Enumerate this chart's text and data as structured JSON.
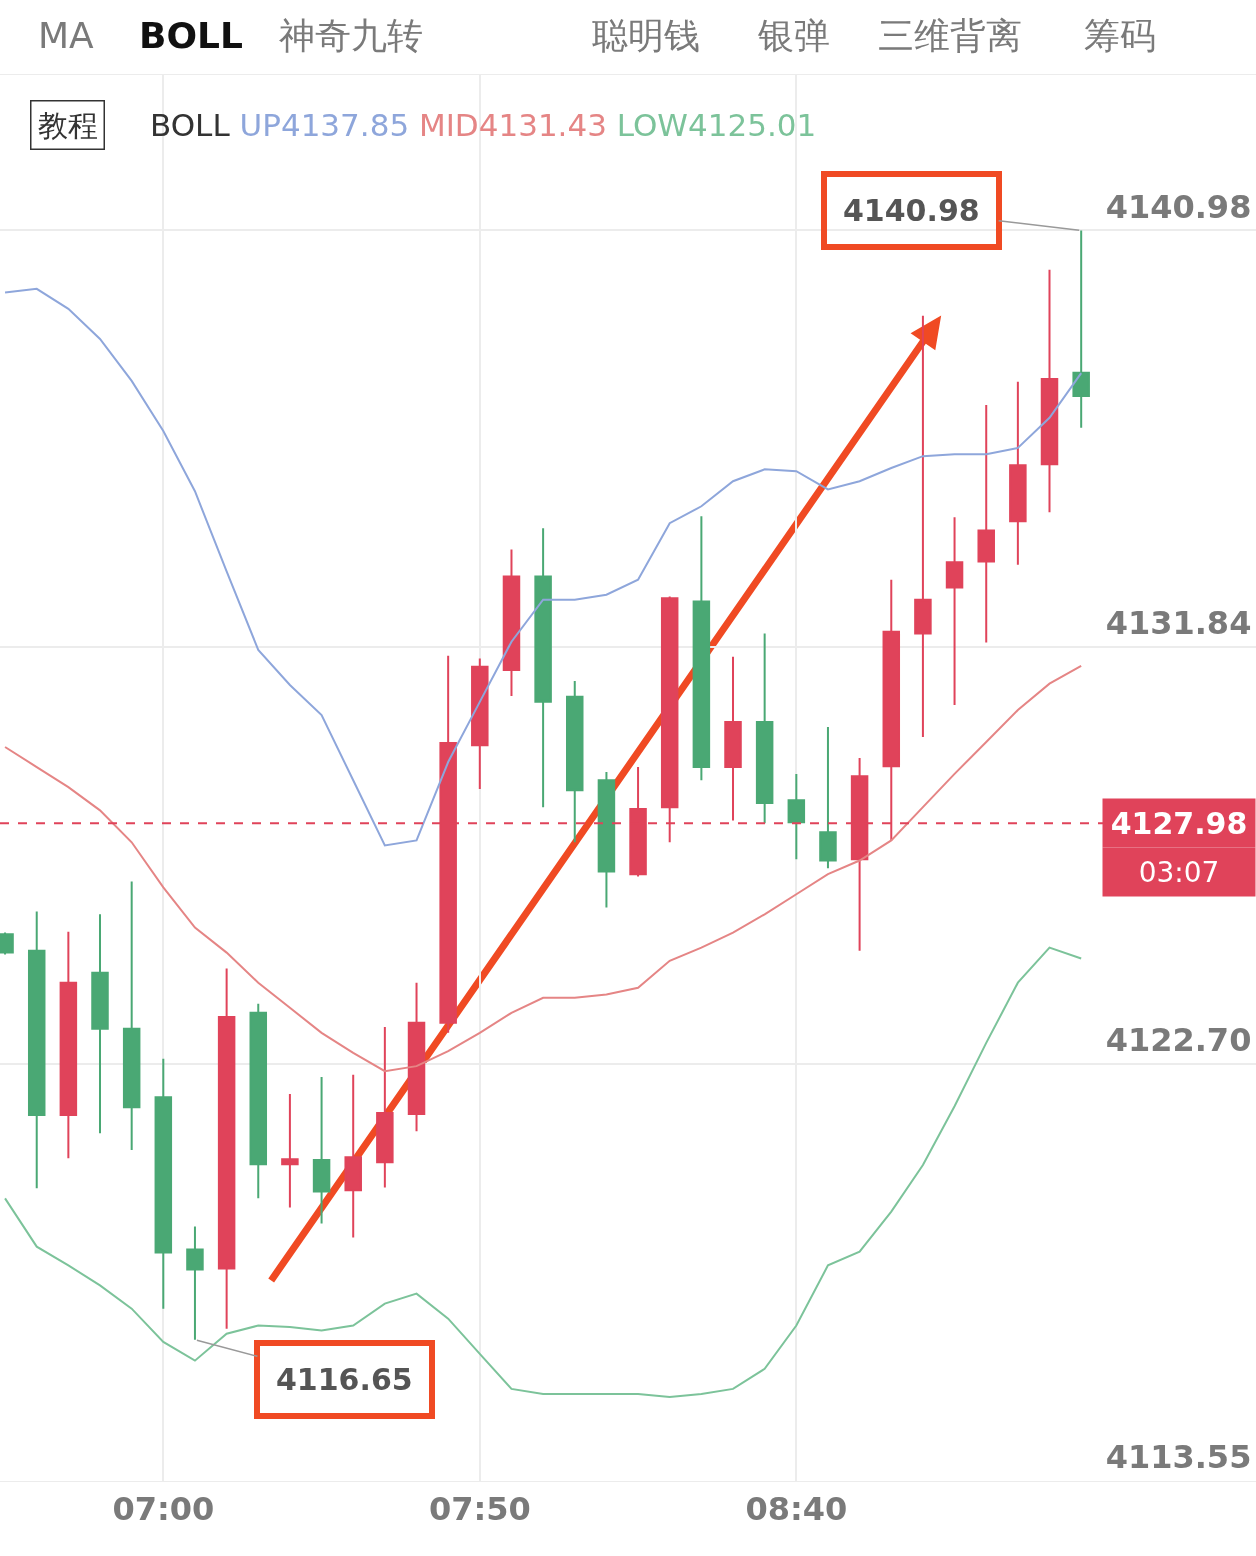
{
  "chart_data": {
    "type": "candlestick",
    "x": [
      6.5833,
      6.6667,
      6.75,
      6.8333,
      6.9167,
      7.0,
      7.0833,
      7.1667,
      7.25,
      7.3333,
      7.4167,
      7.5,
      7.5833,
      7.6667,
      7.75,
      7.8333,
      7.9167,
      8.0,
      8.0833,
      8.1667,
      8.25,
      8.3333,
      8.4167,
      8.5,
      8.5833,
      8.6667,
      8.75,
      8.8333,
      8.9167,
      9.0,
      9.0833,
      9.1667,
      9.25,
      9.3333,
      9.4167
    ],
    "ohlc": [
      [
        4125.54,
        4125.58,
        4125.1,
        4125.14
      ],
      [
        4125.18,
        4126.04,
        4119.97,
        4121.58
      ],
      [
        4121.58,
        4125.6,
        4120.63,
        4124.48
      ],
      [
        4124.7,
        4125.98,
        4121.18,
        4123.47
      ],
      [
        4123.47,
        4126.7,
        4120.81,
        4121.75
      ],
      [
        4121.97,
        4122.81,
        4117.33,
        4118.56
      ],
      [
        4118.63,
        4119.13,
        4116.65,
        4118.19
      ],
      [
        4118.21,
        4124.79,
        4116.89,
        4123.73
      ],
      [
        4123.82,
        4124.02,
        4119.75,
        4120.5
      ],
      [
        4120.5,
        4122.04,
        4119.55,
        4120.61
      ],
      [
        4120.59,
        4122.41,
        4119.2,
        4119.9
      ],
      [
        4119.93,
        4122.46,
        4118.89,
        4120.65
      ],
      [
        4120.54,
        4123.51,
        4119.99,
        4121.62
      ],
      [
        4121.6,
        4124.48,
        4121.22,
        4123.6
      ],
      [
        4123.6,
        4131.65,
        4123.38,
        4129.74
      ],
      [
        4129.69,
        4131.59,
        4128.73,
        4131.41
      ],
      [
        4131.34,
        4133.98,
        4130.77,
        4133.39
      ],
      [
        4133.39,
        4134.45,
        4128.33,
        4130.64
      ],
      [
        4130.75,
        4131.1,
        4127.56,
        4128.7
      ],
      [
        4128.92,
        4129.1,
        4126.13,
        4126.92
      ],
      [
        4126.86,
        4129.21,
        4126.81,
        4128.29
      ],
      [
        4128.33,
        4132.95,
        4127.56,
        4132.91
      ],
      [
        4132.84,
        4134.71,
        4128.92,
        4129.21
      ],
      [
        4129.21,
        4131.63,
        4128.04,
        4130.2
      ],
      [
        4130.2,
        4132.14,
        4127.98,
        4128.42
      ],
      [
        4128.48,
        4129.06,
        4127.19,
        4128.0
      ],
      [
        4127.78,
        4130.09,
        4126.99,
        4127.16
      ],
      [
        4127.19,
        4129.41,
        4125.18,
        4129.01
      ],
      [
        4129.23,
        4133.32,
        4127.6,
        4132.18
      ],
      [
        4132.14,
        4139.11,
        4129.87,
        4132.88
      ],
      [
        4133.15,
        4134.69,
        4130.57,
        4133.7
      ],
      [
        4133.72,
        4137.15,
        4131.94,
        4134.4
      ],
      [
        4134.6,
        4137.66,
        4133.65,
        4135.83
      ],
      [
        4135.85,
        4140.12,
        4134.8,
        4137.72
      ],
      [
        4137.86,
        4140.98,
        4136.65,
        4137.35
      ]
    ],
    "colors": [
      "#4aa874",
      "#4aa874",
      "#e0435a",
      "#4aa874",
      "#4aa874",
      "#4aa874",
      "#4aa874",
      "#e0435a",
      "#4aa874",
      "#e0435a",
      "#4aa874",
      "#e0435a",
      "#e0435a",
      "#e0435a",
      "#e0435a",
      "#e0435a",
      "#e0435a",
      "#4aa874",
      "#4aa874",
      "#4aa874",
      "#e0435a",
      "#e0435a",
      "#4aa874",
      "#e0435a",
      "#4aa874",
      "#4aa874",
      "#4aa874",
      "#e0435a",
      "#e0435a",
      "#e0435a",
      "#e0435a",
      "#e0435a",
      "#e0435a",
      "#e0435a",
      "#4aa874"
    ],
    "series": [
      {
        "type": "line",
        "name": "UP4137.85",
        "color": "#8ea6db",
        "values": [
          4139.62,
          4139.7,
          4139.26,
          4138.6,
          4137.68,
          4136.58,
          4135.26,
          4133.5,
          4131.78,
          4131.01,
          4130.35,
          4128.92,
          4127.49,
          4127.6,
          4129.32,
          4130.64,
          4131.96,
          4132.88,
          4132.88,
          4132.99,
          4133.32,
          4134.56,
          4134.93,
          4135.48,
          4135.74,
          4135.7,
          4135.3,
          4135.48,
          4135.77,
          4136.03,
          4136.07,
          4136.07,
          4136.21,
          4136.87,
          4137.85
        ]
      },
      {
        "type": "line",
        "name": "MID4131.43",
        "color": "#e58585",
        "values": [
          4129.65,
          4129.21,
          4128.77,
          4128.26,
          4127.56,
          4126.57,
          4125.69,
          4125.14,
          4124.48,
          4123.93,
          4123.38,
          4122.94,
          4122.54,
          4122.65,
          4122.98,
          4123.38,
          4123.82,
          4124.15,
          4124.15,
          4124.22,
          4124.37,
          4124.96,
          4125.25,
          4125.58,
          4125.98,
          4126.42,
          4126.86,
          4127.16,
          4127.6,
          4128.33,
          4129.06,
          4129.76,
          4130.46,
          4131.04,
          4131.43
        ]
      },
      {
        "type": "line",
        "name": "LOW4125.01",
        "color": "#7cc39a",
        "values": [
          4119.75,
          4118.69,
          4118.28,
          4117.84,
          4117.33,
          4116.6,
          4116.19,
          4116.78,
          4116.96,
          4116.93,
          4116.85,
          4116.96,
          4117.44,
          4117.66,
          4117.11,
          4116.34,
          4115.57,
          4115.46,
          4115.46,
          4115.46,
          4115.46,
          4115.39,
          4115.46,
          4115.57,
          4116.01,
          4116.96,
          4118.28,
          4118.58,
          4119.46,
          4120.48,
          4121.77,
          4123.16,
          4124.48,
          4125.25,
          4125.01
        ]
      }
    ],
    "xlim": [
      6.57,
      9.877
    ],
    "ylim": [
      4113.55,
      4144.39
    ],
    "xticks": [
      {
        "value": 7.0,
        "label": "07:00"
      },
      {
        "value": 7.8333,
        "label": "07:50"
      },
      {
        "value": 8.6667,
        "label": "08:40"
      }
    ],
    "yticks": [
      {
        "value": 4113.55,
        "label": "4113.55"
      },
      {
        "value": 4122.7,
        "label": "4122.70"
      },
      {
        "value": 4131.84,
        "label": "4131.84"
      },
      {
        "value": 4140.98,
        "label": "4140.98"
      }
    ],
    "grid": true,
    "legend": false,
    "ref_lines": [
      {
        "axis": "y",
        "value": 4127.98,
        "label": "4127.98",
        "color": "#e0435a",
        "line_style": "dashed"
      }
    ],
    "annotations": [
      "MA",
      "BOLL",
      "神奇九转",
      "聪明钱",
      "银弹",
      "三维背离",
      "筹码",
      "教程",
      "BOLL",
      {
        "text": "4140.98",
        "x": 9.4167,
        "y": 4140.98
      },
      {
        "text": "4116.65",
        "x": 7.0833,
        "y": 4116.65
      },
      "03:07"
    ]
  }
}
